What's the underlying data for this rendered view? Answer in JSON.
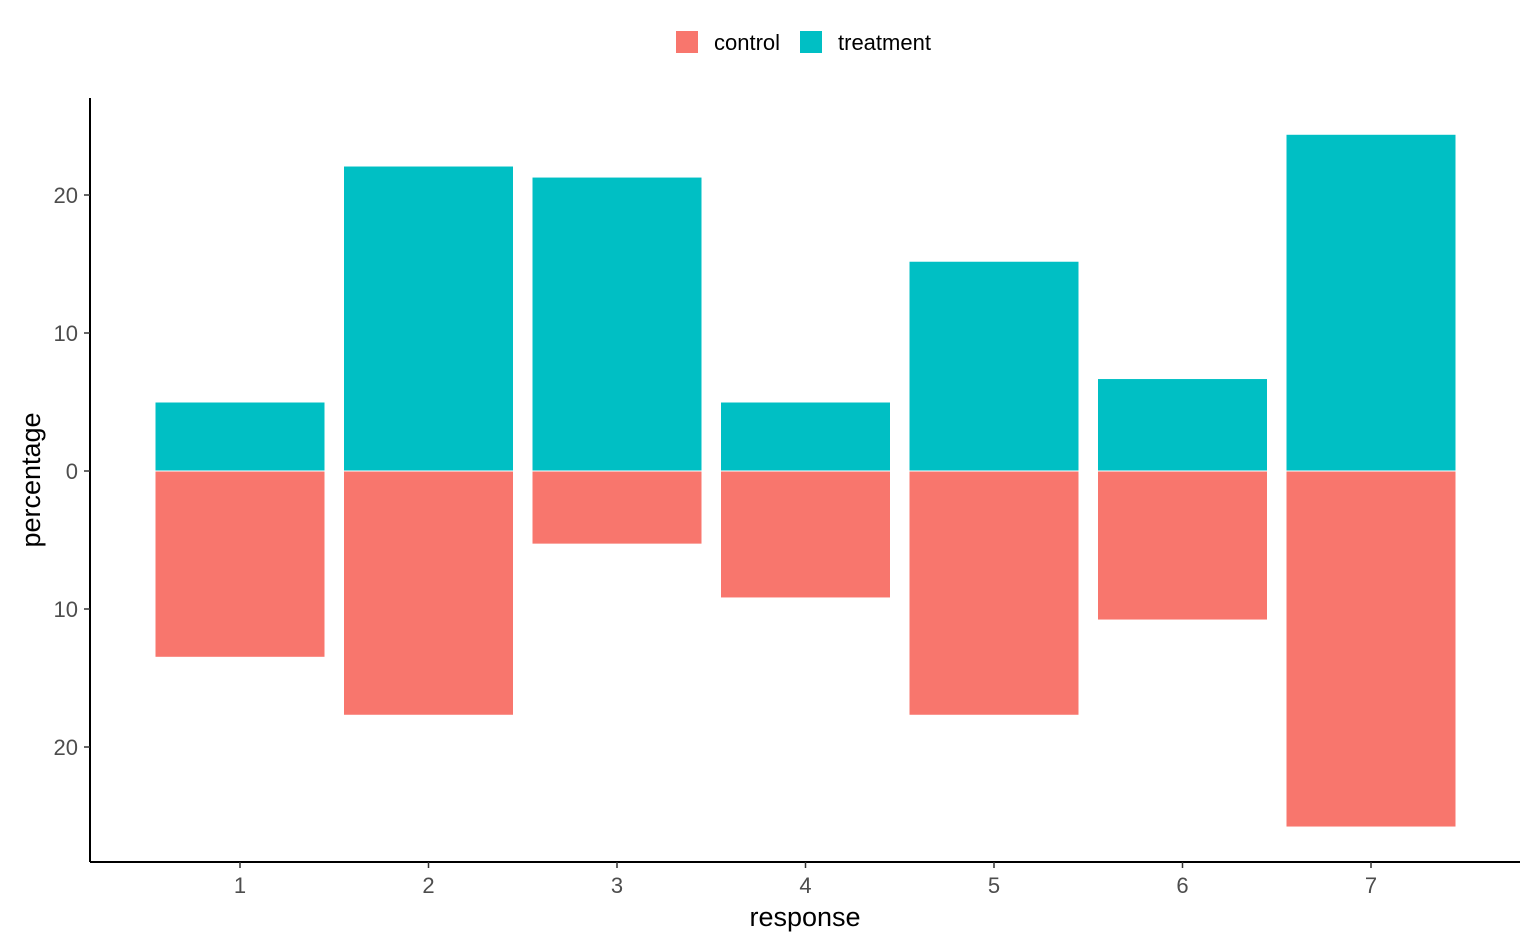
{
  "chart_data": {
    "type": "bar",
    "orientation": "diverging",
    "categories": [
      "1",
      "2",
      "3",
      "4",
      "5",
      "6",
      "7"
    ],
    "series": [
      {
        "name": "control",
        "direction": "down",
        "color": "#F8766D",
        "values": [
          13.5,
          17.7,
          5.3,
          9.2,
          17.7,
          10.8,
          25.8
        ]
      },
      {
        "name": "treatment",
        "direction": "up",
        "color": "#00BFC4",
        "values": [
          5.0,
          22.1,
          21.3,
          5.0,
          15.2,
          6.7,
          24.4
        ]
      }
    ],
    "xlabel": "response",
    "ylabel": "percentage",
    "ylim": [
      -28.2,
      26.9
    ],
    "yticks": [
      {
        "value": 20,
        "label": "20"
      },
      {
        "value": 10,
        "label": "10"
      },
      {
        "value": 0,
        "label": "0"
      },
      {
        "value": -10,
        "label": "10"
      },
      {
        "value": -20,
        "label": "20"
      }
    ],
    "legend": {
      "position": "top",
      "entries": [
        "control",
        "treatment"
      ]
    },
    "grid": false
  }
}
